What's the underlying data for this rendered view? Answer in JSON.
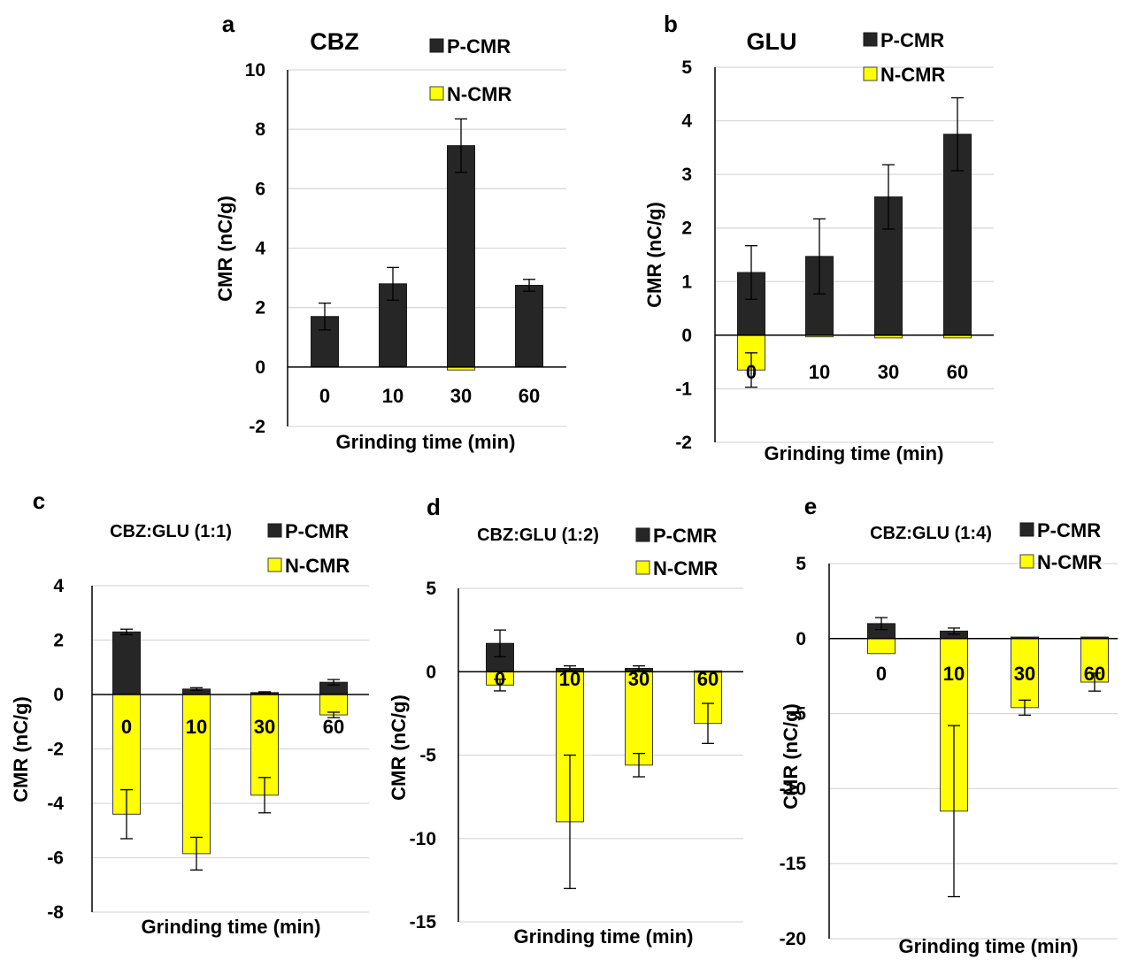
{
  "colors": {
    "p_cmr": "#262626",
    "n_cmr": "#ffff00",
    "grid": "#d9d9d9",
    "axis": "#000000"
  },
  "chart_data": [
    {
      "id": "a",
      "panel_label": "a",
      "type": "bar",
      "title": "CBZ",
      "categories": [
        "0",
        "10",
        "30",
        "60"
      ],
      "xlabel": "Grinding time (min)",
      "ylabel": "CMR (nC/g)",
      "ylim": [
        -2,
        10
      ],
      "yticks": [
        -2,
        0,
        2,
        4,
        6,
        8,
        10
      ],
      "grid": true,
      "legend": "top-right",
      "series": [
        {
          "name": "P-CMR",
          "values": [
            1.7,
            2.8,
            7.45,
            2.75
          ],
          "errors": [
            0.45,
            0.55,
            0.9,
            0.2
          ]
        },
        {
          "name": "N-CMR",
          "values": [
            0,
            0,
            -0.1,
            0
          ],
          "errors": [
            0,
            0,
            0,
            0
          ]
        }
      ]
    },
    {
      "id": "b",
      "panel_label": "b",
      "type": "bar",
      "title": "GLU",
      "categories": [
        "0",
        "10",
        "30",
        "60"
      ],
      "xlabel": "Grinding time (min)",
      "ylabel": "CMR (nC/g)",
      "ylim": [
        -2,
        5
      ],
      "yticks": [
        -2,
        -1,
        0,
        1,
        2,
        3,
        4,
        5
      ],
      "grid": true,
      "legend": "top-right",
      "series": [
        {
          "name": "P-CMR",
          "values": [
            1.17,
            1.47,
            2.58,
            3.75
          ],
          "errors": [
            0.5,
            0.7,
            0.6,
            0.68
          ]
        },
        {
          "name": "N-CMR",
          "values": [
            -0.65,
            -0.03,
            -0.05,
            -0.05
          ],
          "errors": [
            0.32,
            0,
            0,
            0
          ]
        }
      ]
    },
    {
      "id": "c",
      "panel_label": "c",
      "type": "bar",
      "title": "CBZ:GLU (1:1)",
      "categories": [
        "0",
        "10",
        "30",
        "60"
      ],
      "xlabel": "Grinding time (min)",
      "ylabel": "CMR (nC/g)",
      "ylim": [
        -8,
        4
      ],
      "yticks": [
        -8,
        -6,
        -4,
        -2,
        0,
        2,
        4
      ],
      "grid": true,
      "legend": "top-right",
      "series": [
        {
          "name": "P-CMR",
          "values": [
            2.3,
            0.2,
            0.07,
            0.45
          ],
          "errors": [
            0.1,
            0.05,
            0.03,
            0.1
          ]
        },
        {
          "name": "N-CMR",
          "values": [
            -4.4,
            -5.85,
            -3.7,
            -0.75
          ],
          "errors": [
            0.9,
            0.6,
            0.65,
            0.1
          ]
        }
      ]
    },
    {
      "id": "d",
      "panel_label": "d",
      "type": "bar",
      "title": "CBZ:GLU (1:2)",
      "categories": [
        "0",
        "10",
        "30",
        "60"
      ],
      "xlabel": "Grinding time (min)",
      "ylabel": "CMR (nC/g)",
      "ylim": [
        -15,
        5
      ],
      "yticks": [
        -15,
        -10,
        -5,
        0,
        5
      ],
      "grid": true,
      "legend": "top-right",
      "series": [
        {
          "name": "P-CMR",
          "values": [
            1.7,
            0.2,
            0.2,
            0.05
          ],
          "errors": [
            0.8,
            0.15,
            0.15,
            0
          ]
        },
        {
          "name": "N-CMR",
          "values": [
            -0.8,
            -9.0,
            -5.6,
            -3.1
          ],
          "errors": [
            0.35,
            4.0,
            0.7,
            1.2
          ]
        }
      ]
    },
    {
      "id": "e",
      "panel_label": "e",
      "type": "bar",
      "title": "CBZ:GLU (1:4)",
      "categories": [
        "0",
        "10",
        "30",
        "60"
      ],
      "xlabel": "Grinding time (min)",
      "ylabel": "CMR (nC/g)",
      "ylim": [
        -20,
        5
      ],
      "yticks": [
        -20,
        -15,
        -10,
        -5,
        0,
        5
      ],
      "grid": true,
      "legend": "top-right",
      "series": [
        {
          "name": "P-CMR",
          "values": [
            1.0,
            0.5,
            0.1,
            0.1
          ],
          "errors": [
            0.4,
            0.2,
            0,
            0
          ]
        },
        {
          "name": "N-CMR",
          "values": [
            -1.0,
            -11.5,
            -4.6,
            -2.9
          ],
          "errors": [
            0,
            5.7,
            0.5,
            0.6
          ]
        }
      ]
    }
  ]
}
